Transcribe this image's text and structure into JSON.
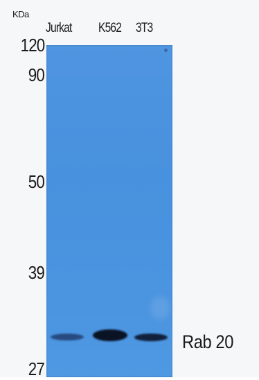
{
  "units_label": "KDa",
  "lanes": [
    "Jurkat",
    "K562",
    "3T3"
  ],
  "markers": [
    "120",
    "90",
    "50",
    "39",
    "27"
  ],
  "target_label": "Rab 20",
  "membrane_color": "#4a93df",
  "band_color": "#0e1a36"
}
